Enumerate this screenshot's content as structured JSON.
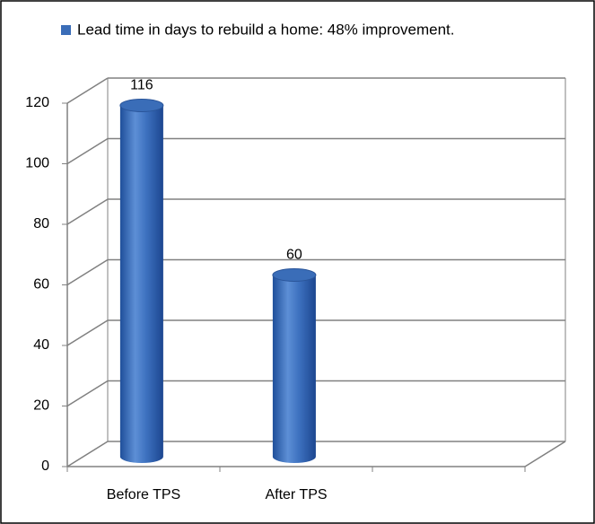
{
  "chart_data": {
    "type": "cylinder-bar",
    "legend_label": "Lead time in days to rebuild a home: 48% improvement.",
    "categories": [
      "Before TPS",
      "After TPS",
      null
    ],
    "values": [
      116,
      60,
      null
    ],
    "color": "#3a6db8",
    "ylim": [
      0,
      120
    ],
    "yticks": [
      0,
      20,
      40,
      60,
      80,
      100,
      120
    ],
    "grid": true
  }
}
